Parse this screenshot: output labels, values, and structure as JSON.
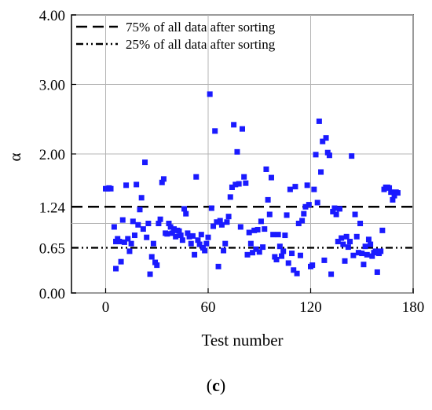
{
  "chart_data": {
    "type": "scatter",
    "xlabel": "Test number",
    "ylabel": "α",
    "xlim": [
      -20,
      180
    ],
    "ylim": [
      0,
      4
    ],
    "x_ticks": [
      0,
      60,
      120,
      180
    ],
    "y_ticks": [
      0.0,
      0.65,
      1.24,
      2.0,
      3.0,
      4.0
    ],
    "y_tick_labels": [
      "0.00",
      "0.65",
      "1.24",
      "2.00",
      "3.00",
      "4.00"
    ],
    "grid": true,
    "legend_position": "top-left",
    "marker_color": "#1a1aff",
    "reference_lines": [
      {
        "label": "75% of all data after sorting",
        "value": 1.24,
        "style": "dashed"
      },
      {
        "label": "25% of all data after sorting",
        "value": 0.65,
        "style": "dash-dot-dot"
      }
    ],
    "series": [
      {
        "points": [
          [
            0,
            1.5
          ],
          [
            1,
            1.5
          ],
          [
            2,
            1.51
          ],
          [
            3,
            1.5
          ],
          [
            5,
            0.95
          ],
          [
            6,
            0.35
          ],
          [
            6,
            0.74
          ],
          [
            7,
            0.78
          ],
          [
            8,
            0.74
          ],
          [
            9,
            0.45
          ],
          [
            10,
            1.05
          ],
          [
            11,
            0.73
          ],
          [
            12,
            1.55
          ],
          [
            13,
            0.78
          ],
          [
            14,
            0.6
          ],
          [
            15,
            0.71
          ],
          [
            16,
            1.03
          ],
          [
            17,
            0.83
          ],
          [
            18,
            1.56
          ],
          [
            19,
            0.98
          ],
          [
            20,
            1.2
          ],
          [
            21,
            1.37
          ],
          [
            22,
            0.92
          ],
          [
            23,
            1.88
          ],
          [
            24,
            0.8
          ],
          [
            25,
            1.0
          ],
          [
            26,
            0.27
          ],
          [
            27,
            0.52
          ],
          [
            28,
            0.71
          ],
          [
            29,
            0.44
          ],
          [
            30,
            0.4
          ],
          [
            31,
            1.0
          ],
          [
            32,
            1.06
          ],
          [
            33,
            1.59
          ],
          [
            34,
            1.64
          ],
          [
            35,
            0.86
          ],
          [
            36,
            0.85
          ],
          [
            37,
            1.0
          ],
          [
            38,
            0.95
          ],
          [
            39,
            0.86
          ],
          [
            40,
            0.92
          ],
          [
            41,
            0.81
          ],
          [
            42,
            0.9
          ],
          [
            43,
            0.89
          ],
          [
            44,
            0.83
          ],
          [
            45,
            0.76
          ],
          [
            46,
            1.21
          ],
          [
            47,
            1.14
          ],
          [
            48,
            0.86
          ],
          [
            49,
            0.81
          ],
          [
            50,
            0.71
          ],
          [
            51,
            0.82
          ],
          [
            52,
            0.55
          ],
          [
            53,
            1.67
          ],
          [
            54,
            0.76
          ],
          [
            55,
            0.7
          ],
          [
            56,
            0.84
          ],
          [
            57,
            0.65
          ],
          [
            58,
            0.61
          ],
          [
            59,
            0.71
          ],
          [
            60,
            0.8
          ],
          [
            61,
            2.86
          ],
          [
            62,
            1.22
          ],
          [
            63,
            0.96
          ],
          [
            64,
            2.33
          ],
          [
            65,
            1.02
          ],
          [
            66,
            0.38
          ],
          [
            67,
            1.04
          ],
          [
            68,
            0.98
          ],
          [
            69,
            0.61
          ],
          [
            70,
            0.71
          ],
          [
            71,
            1.02
          ],
          [
            72,
            1.1
          ],
          [
            73,
            1.38
          ],
          [
            74,
            1.52
          ],
          [
            75,
            2.42
          ],
          [
            76,
            1.56
          ],
          [
            77,
            2.03
          ],
          [
            78,
            1.57
          ],
          [
            79,
            0.95
          ],
          [
            80,
            2.36
          ],
          [
            81,
            1.67
          ],
          [
            82,
            1.58
          ],
          [
            83,
            0.55
          ],
          [
            84,
            0.87
          ],
          [
            85,
            0.71
          ],
          [
            86,
            0.58
          ],
          [
            87,
            0.9
          ],
          [
            88,
            0.63
          ],
          [
            89,
            0.91
          ],
          [
            90,
            0.59
          ],
          [
            91,
            1.03
          ],
          [
            92,
            0.66
          ],
          [
            93,
            0.92
          ],
          [
            94,
            1.78
          ],
          [
            95,
            1.34
          ],
          [
            96,
            1.13
          ],
          [
            97,
            1.66
          ],
          [
            98,
            0.84
          ],
          [
            99,
            0.52
          ],
          [
            100,
            0.48
          ],
          [
            101,
            0.84
          ],
          [
            102,
            0.67
          ],
          [
            103,
            0.53
          ],
          [
            104,
            0.6
          ],
          [
            105,
            0.83
          ],
          [
            106,
            1.12
          ],
          [
            107,
            0.43
          ],
          [
            108,
            1.49
          ],
          [
            109,
            0.57
          ],
          [
            110,
            0.33
          ],
          [
            111,
            1.53
          ],
          [
            112,
            0.28
          ],
          [
            113,
            1.0
          ],
          [
            114,
            0.54
          ],
          [
            115,
            1.04
          ],
          [
            116,
            1.14
          ],
          [
            117,
            1.24
          ],
          [
            118,
            1.55
          ],
          [
            119,
            1.27
          ],
          [
            120,
            0.38
          ],
          [
            121,
            0.4
          ],
          [
            122,
            1.49
          ],
          [
            123,
            1.99
          ],
          [
            124,
            1.3
          ],
          [
            125,
            2.47
          ],
          [
            126,
            1.74
          ],
          [
            127,
            2.18
          ],
          [
            128,
            0.47
          ],
          [
            129,
            2.23
          ],
          [
            130,
            2.02
          ],
          [
            131,
            1.98
          ],
          [
            132,
            0.27
          ],
          [
            133,
            1.17
          ],
          [
            134,
            1.22
          ],
          [
            135,
            1.13
          ],
          [
            136,
            0.74
          ],
          [
            137,
            1.21
          ],
          [
            138,
            0.79
          ],
          [
            139,
            0.7
          ],
          [
            140,
            0.46
          ],
          [
            141,
            0.81
          ],
          [
            142,
            0.66
          ],
          [
            143,
            0.74
          ],
          [
            144,
            1.97
          ],
          [
            145,
            0.54
          ],
          [
            146,
            1.13
          ],
          [
            147,
            0.81
          ],
          [
            148,
            0.58
          ],
          [
            149,
            1.0
          ],
          [
            150,
            0.57
          ],
          [
            151,
            0.41
          ],
          [
            152,
            0.67
          ],
          [
            153,
            0.55
          ],
          [
            154,
            0.77
          ],
          [
            155,
            0.7
          ],
          [
            156,
            0.53
          ],
          [
            157,
            0.58
          ],
          [
            158,
            0.6
          ],
          [
            159,
            0.3
          ],
          [
            160,
            0.57
          ],
          [
            161,
            0.6
          ],
          [
            162,
            0.9
          ],
          [
            163,
            1.49
          ],
          [
            164,
            1.52
          ],
          [
            165,
            1.52
          ],
          [
            166,
            1.51
          ],
          [
            167,
            1.45
          ],
          [
            168,
            1.34
          ],
          [
            169,
            1.4
          ],
          [
            170,
            1.45
          ],
          [
            171,
            1.44
          ]
        ]
      }
    ]
  },
  "caption": {
    "open": "(",
    "letter": "c",
    "close": ")"
  }
}
